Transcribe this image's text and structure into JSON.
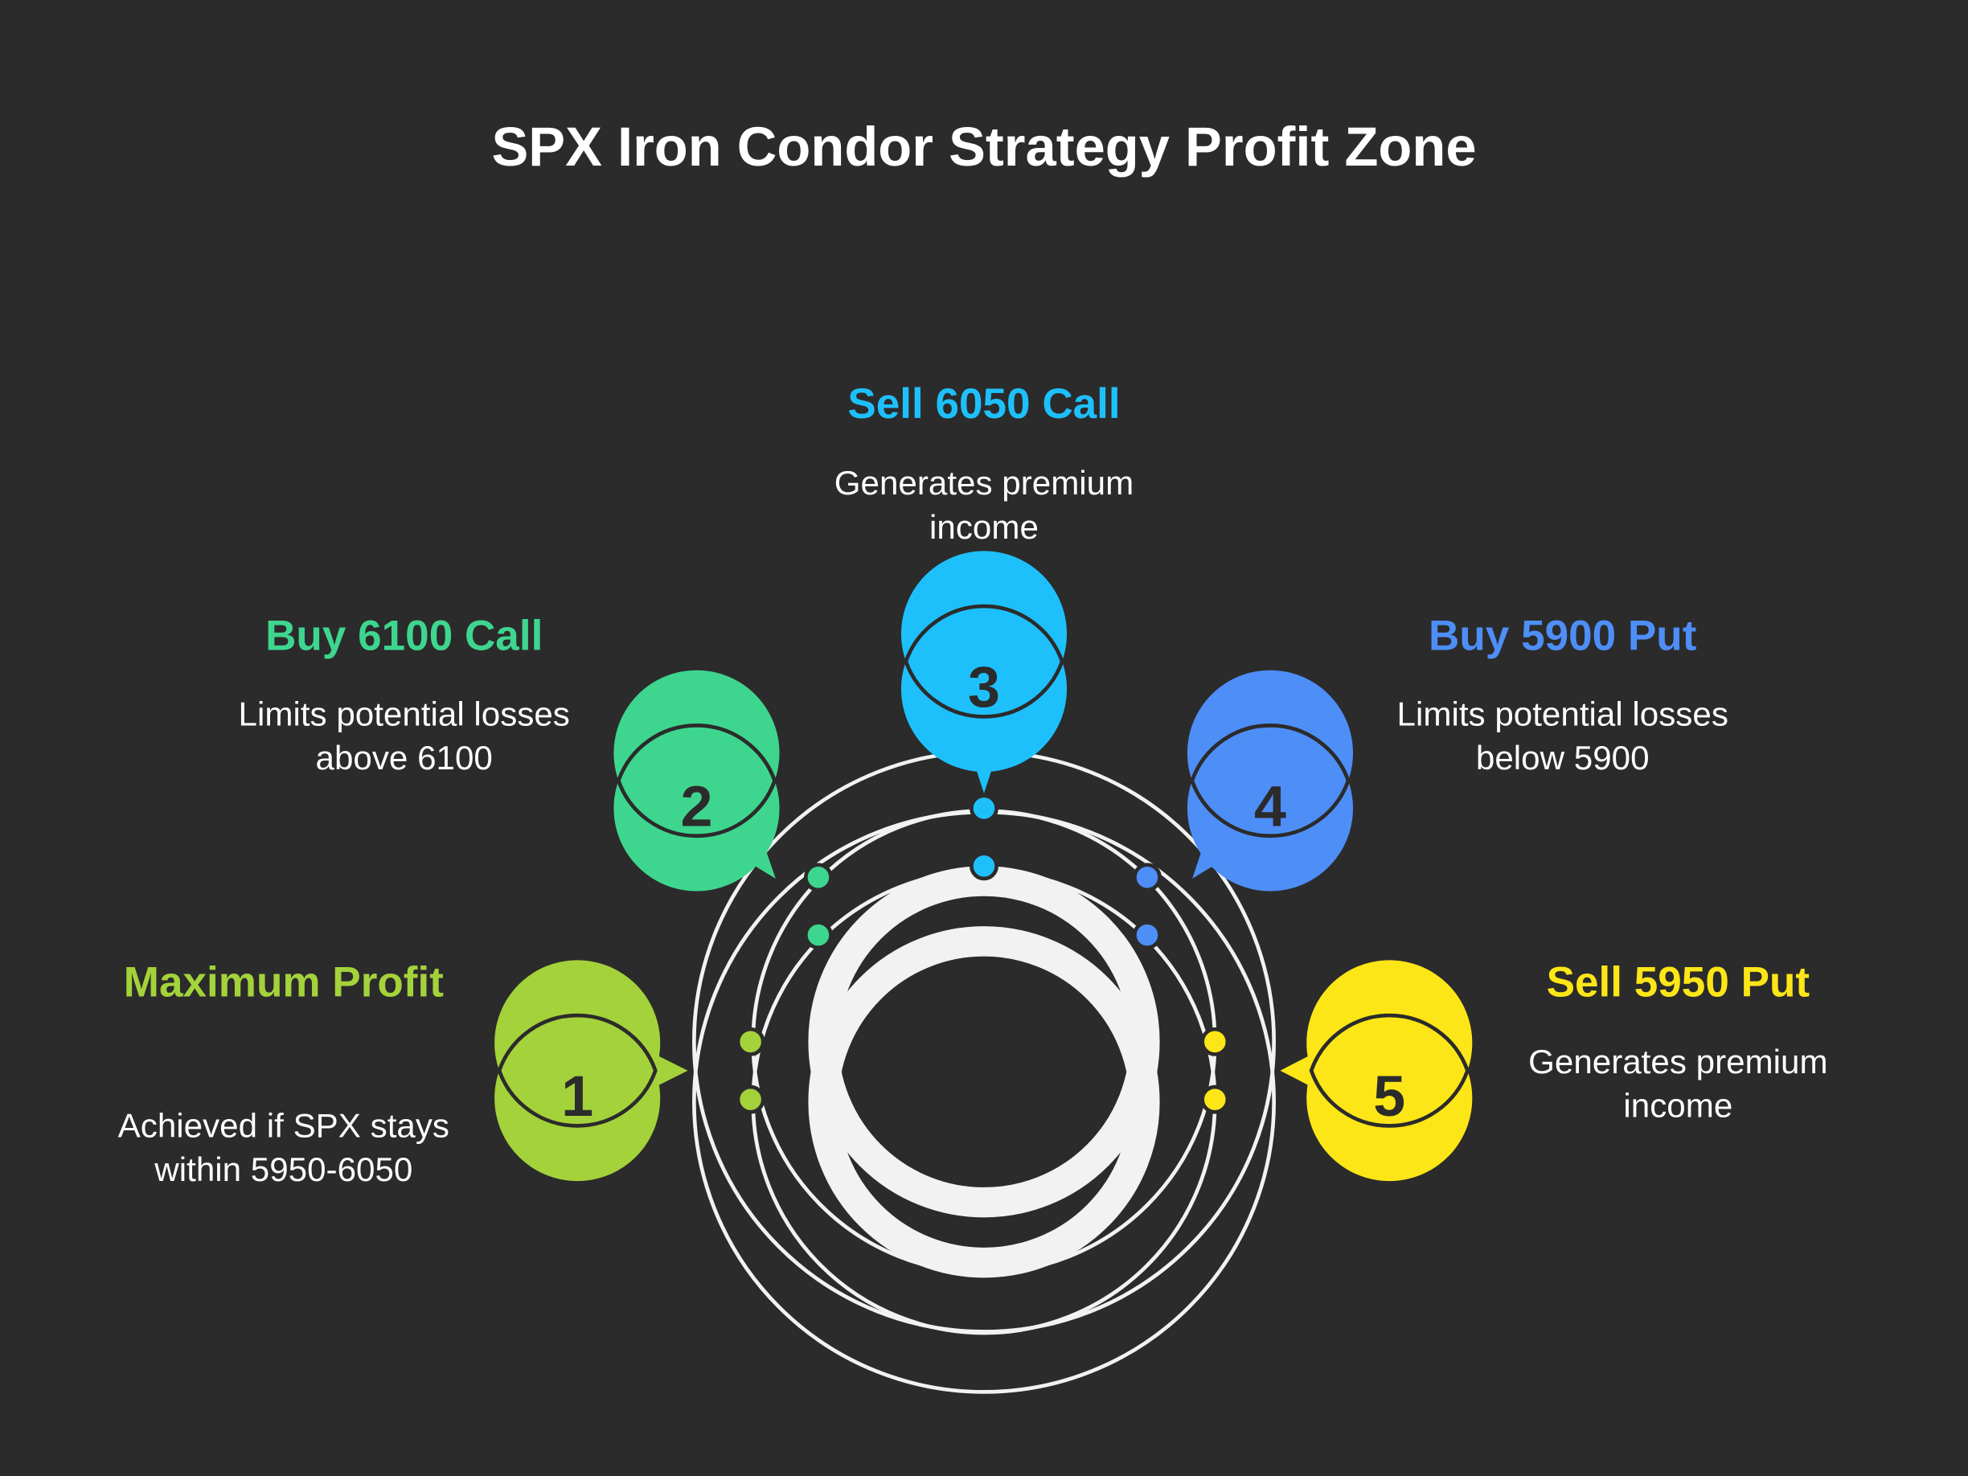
{
  "title": "SPX Iron Condor Strategy Profit Zone",
  "steps": [
    {
      "number": "1",
      "heading": "Maximum Profit",
      "description": "Achieved if SPX stays within 5950-6050"
    },
    {
      "number": "2",
      "heading": "Buy 6100 Call",
      "description": "Limits potential losses above 6100"
    },
    {
      "number": "3",
      "heading": "Sell 6050 Call",
      "description": "Generates premium income"
    },
    {
      "number": "4",
      "heading": "Buy 5900 Put",
      "description": "Limits potential losses below 5900"
    },
    {
      "number": "5",
      "heading": "Sell 5950 Put",
      "description": "Generates premium income"
    }
  ]
}
